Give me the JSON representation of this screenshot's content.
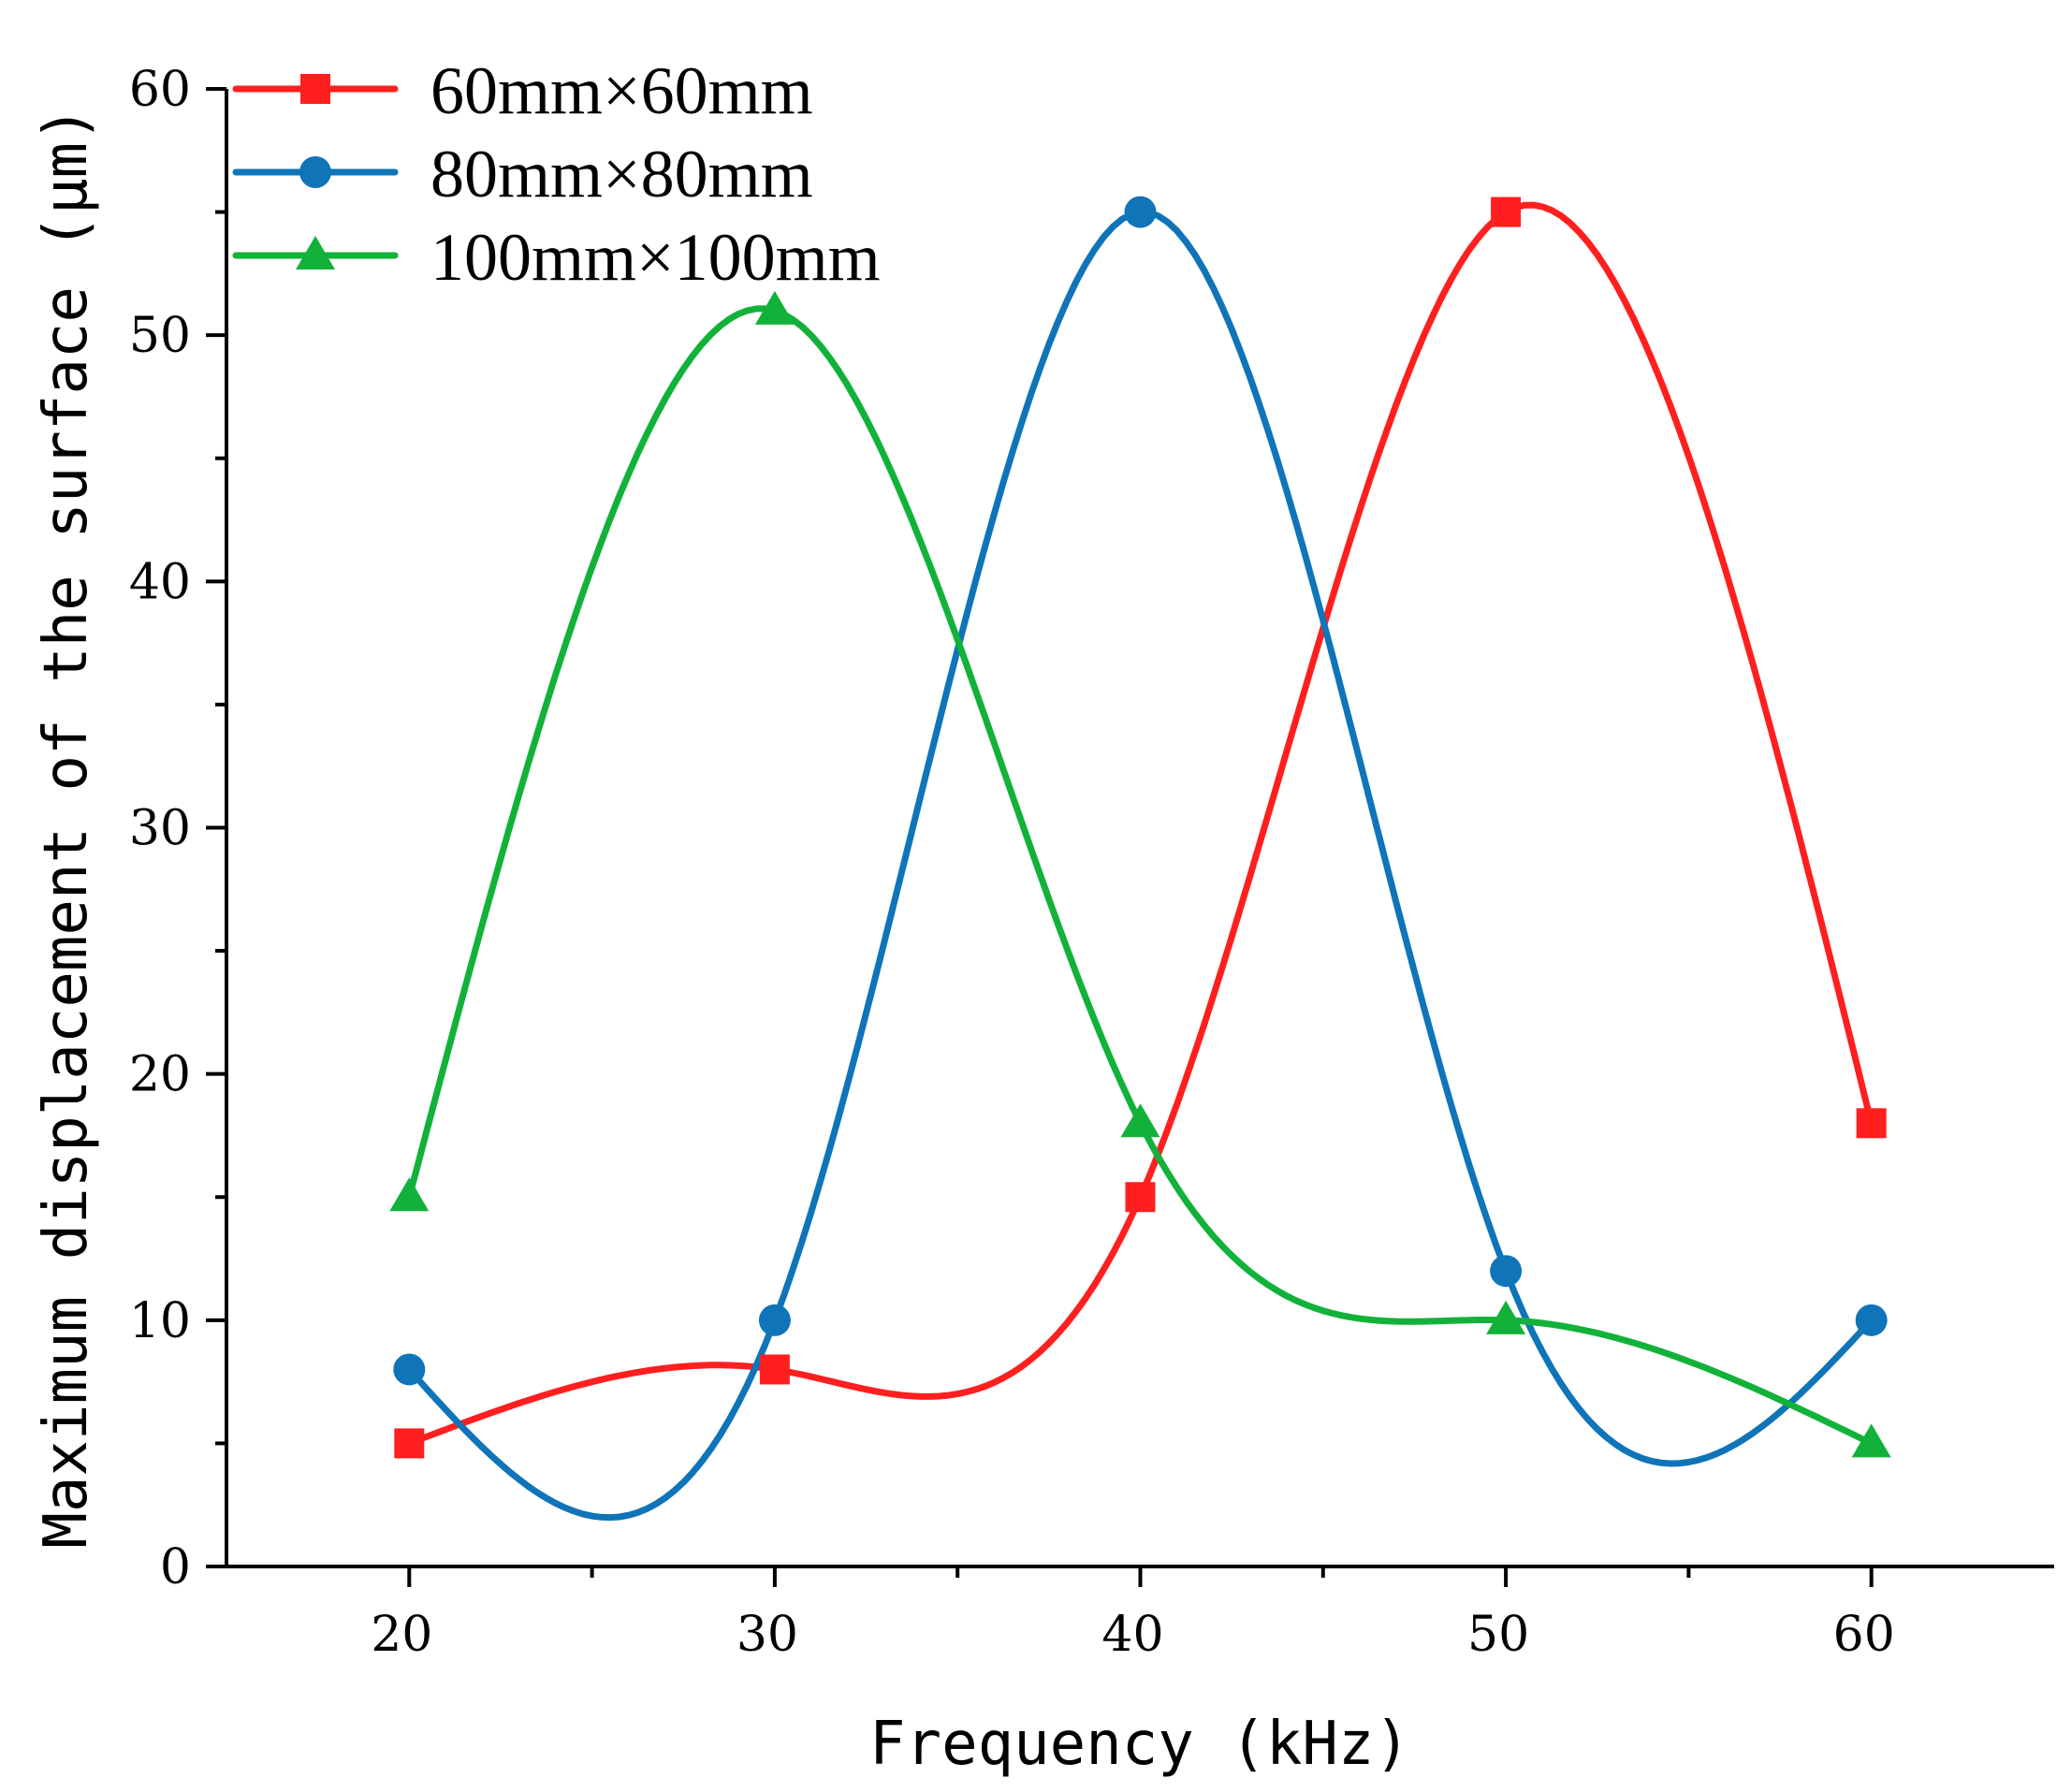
{
  "chart_data": {
    "type": "line",
    "title": "",
    "xlabel": "Frequency (kHz)",
    "ylabel": "Maximum displacement of the surface (μm)",
    "xlim": [
      15,
      65
    ],
    "ylim": [
      0,
      60
    ],
    "x_ticks": [
      20,
      30,
      40,
      50,
      60
    ],
    "y_ticks": [
      0,
      10,
      20,
      30,
      40,
      50,
      60
    ],
    "x_minor_ticks": [
      25,
      35,
      45,
      55
    ],
    "y_minor_ticks": [
      5,
      15,
      25,
      35,
      45,
      55
    ],
    "smooth": true,
    "legend_position": "top-left",
    "series": [
      {
        "name": "60mm×60mm",
        "color": "#ff1f1f",
        "marker": "square",
        "x": [
          20,
          30,
          40,
          50,
          60
        ],
        "y": [
          5,
          8,
          15,
          55,
          18
        ]
      },
      {
        "name": "80mm×80mm",
        "color": "#0f74b8",
        "marker": "circle",
        "x": [
          20,
          30,
          40,
          50,
          60
        ],
        "y": [
          8,
          10,
          55,
          12,
          10
        ]
      },
      {
        "name": "100mm×100mm",
        "color": "#12b23a",
        "marker": "triangle",
        "x": [
          20,
          30,
          40,
          50,
          60
        ],
        "y": [
          15,
          51,
          18,
          10,
          5
        ]
      }
    ]
  }
}
